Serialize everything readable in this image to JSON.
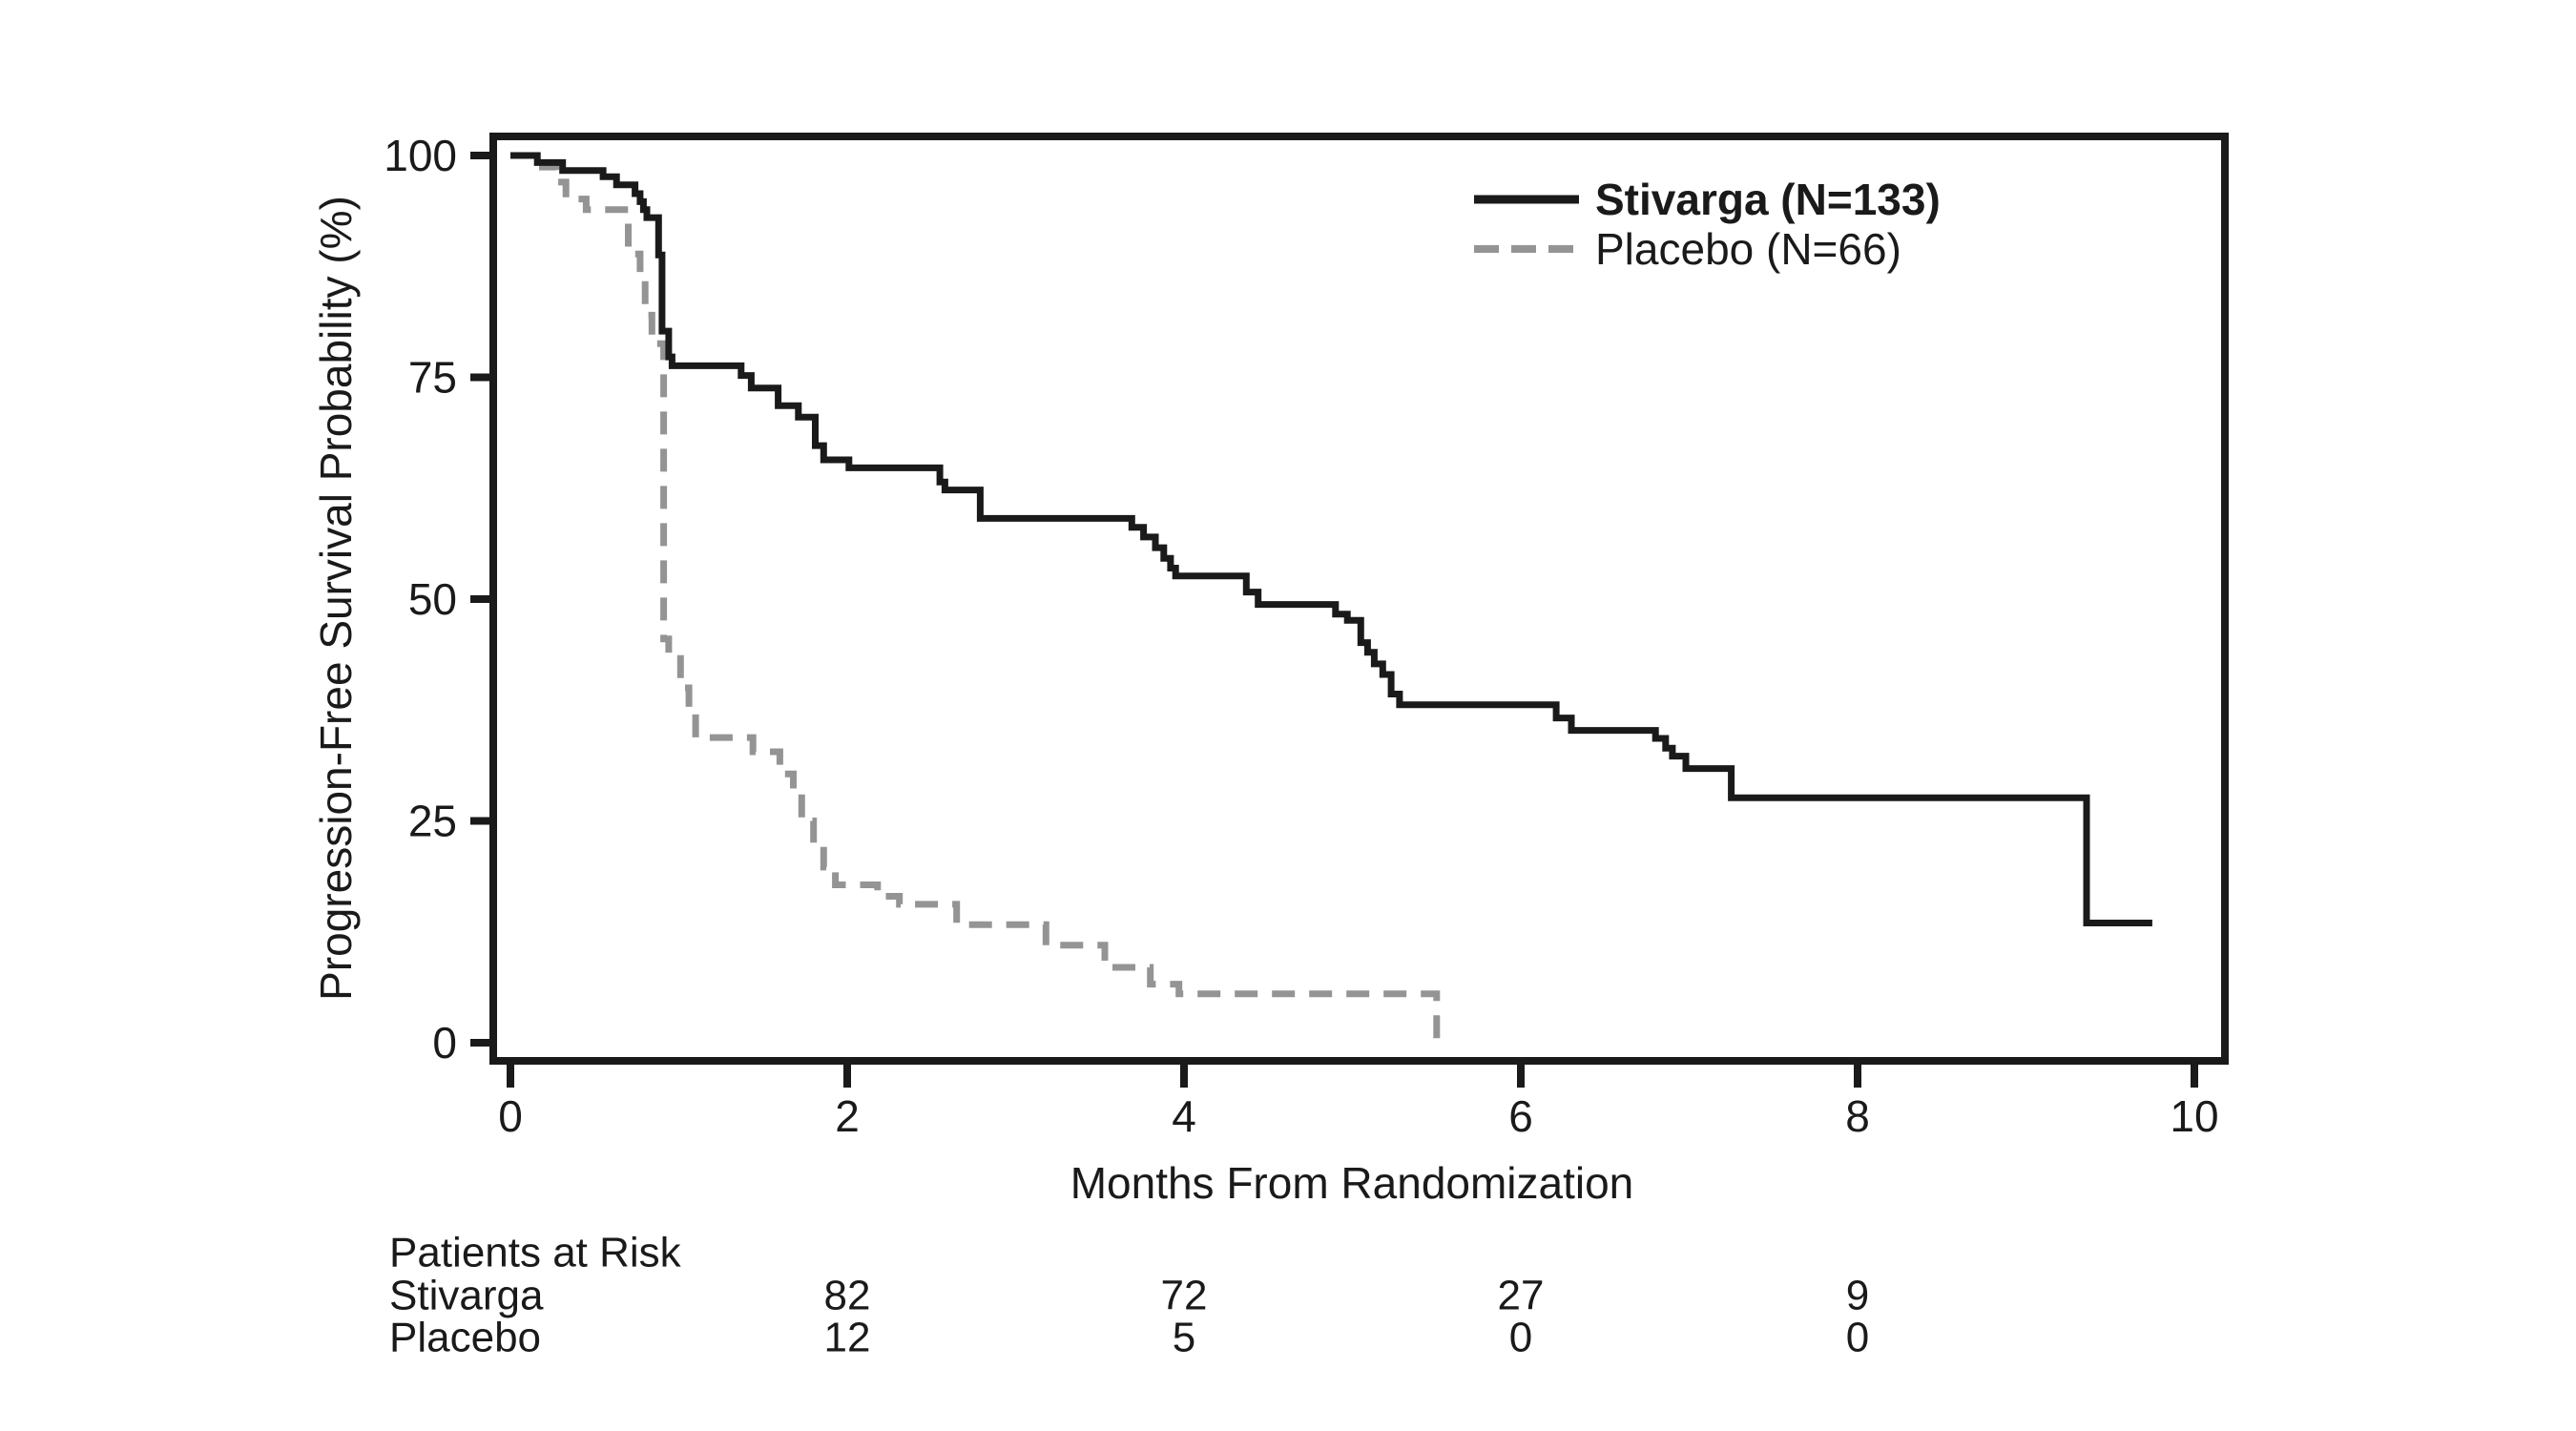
{
  "figure": {
    "background": "#ffffff",
    "text_color": "#1a1a1a"
  },
  "axes": {
    "y": {
      "title": "Progression-Free Survival Probability (%)",
      "ticks": [
        0,
        25,
        50,
        75,
        100
      ],
      "range": [
        0,
        100
      ]
    },
    "x": {
      "title": "Months From Randomization",
      "ticks": [
        0,
        2,
        4,
        6,
        8,
        10
      ],
      "range": [
        0,
        10
      ]
    }
  },
  "legend": {
    "entries": [
      {
        "label": "Stivarga (N=133)",
        "line": "solid",
        "color": "#1a1a1a",
        "bold": true
      },
      {
        "label": "Placebo (N=66)",
        "line": "dashed",
        "color": "#949494",
        "bold": false
      }
    ]
  },
  "risk_table": {
    "header": "Patients at Risk",
    "months": [
      2,
      4,
      6,
      8
    ],
    "rows": [
      {
        "label": "Stivarga",
        "counts": [
          "82",
          "72",
          "27",
          "9"
        ]
      },
      {
        "label": "Placebo",
        "counts": [
          "12",
          "5",
          "0",
          "0"
        ]
      }
    ]
  },
  "chart_data": {
    "type": "line",
    "subtype": "kaplan-meier-step",
    "title": "",
    "xlabel": "Months From Randomization",
    "ylabel": "Progression-Free Survival Probability (%)",
    "xlim": [
      0,
      10
    ],
    "ylim": [
      0,
      100
    ],
    "grid": false,
    "legend_position": "top-right",
    "series": [
      {
        "name": "Stivarga (N=133)",
        "n": 133,
        "style": "solid",
        "color": "#1a1a1a",
        "end_month": 9.75,
        "steps": [
          [
            0,
            100
          ],
          [
            0.16,
            99.2
          ],
          [
            0.31,
            98.3
          ],
          [
            0.55,
            97.6
          ],
          [
            0.63,
            96.7
          ],
          [
            0.74,
            95.7
          ],
          [
            0.77,
            94.8
          ],
          [
            0.79,
            93.9
          ],
          [
            0.81,
            93.0
          ],
          [
            0.88,
            88.8
          ],
          [
            0.9,
            80.2
          ],
          [
            0.94,
            77.3
          ],
          [
            0.96,
            76.3
          ],
          [
            1.37,
            75.2
          ],
          [
            1.43,
            73.8
          ],
          [
            1.59,
            71.8
          ],
          [
            1.71,
            70.5
          ],
          [
            1.81,
            67.3
          ],
          [
            1.86,
            65.7
          ],
          [
            2.01,
            64.8
          ],
          [
            2.55,
            63.2
          ],
          [
            2.58,
            62.3
          ],
          [
            2.79,
            59.1
          ],
          [
            3.69,
            58.1
          ],
          [
            3.76,
            57.0
          ],
          [
            3.83,
            55.8
          ],
          [
            3.88,
            54.6
          ],
          [
            3.92,
            53.5
          ],
          [
            3.95,
            52.6
          ],
          [
            4.37,
            50.8
          ],
          [
            4.44,
            49.4
          ],
          [
            4.9,
            48.3
          ],
          [
            4.97,
            47.6
          ],
          [
            5.05,
            45.1
          ],
          [
            5.09,
            44.0
          ],
          [
            5.13,
            42.7
          ],
          [
            5.18,
            41.5
          ],
          [
            5.23,
            39.3
          ],
          [
            5.28,
            38.1
          ],
          [
            6.21,
            36.6
          ],
          [
            6.3,
            35.2
          ],
          [
            6.8,
            34.3
          ],
          [
            6.86,
            33.2
          ],
          [
            6.9,
            32.3
          ],
          [
            6.98,
            30.9
          ],
          [
            7.25,
            27.6
          ],
          [
            9.36,
            13.5
          ]
        ]
      },
      {
        "name": "Placebo (N=66)",
        "n": 66,
        "style": "dashed",
        "color": "#949494",
        "end_month": 5.5,
        "steps": [
          [
            0,
            100
          ],
          [
            0.19,
            98.7
          ],
          [
            0.27,
            97.0
          ],
          [
            0.33,
            95.1
          ],
          [
            0.45,
            93.9
          ],
          [
            0.7,
            88.9
          ],
          [
            0.77,
            86.4
          ],
          [
            0.8,
            82.0
          ],
          [
            0.84,
            78.8
          ],
          [
            0.91,
            45.5
          ],
          [
            0.94,
            43.9
          ],
          [
            1.01,
            40.0
          ],
          [
            1.06,
            37.0
          ],
          [
            1.1,
            34.4
          ],
          [
            1.44,
            32.8
          ],
          [
            1.6,
            30.3
          ],
          [
            1.68,
            28.0
          ],
          [
            1.73,
            25.0
          ],
          [
            1.8,
            22.5
          ],
          [
            1.86,
            19.8
          ],
          [
            1.93,
            17.8
          ],
          [
            2.18,
            16.5
          ],
          [
            2.31,
            15.6
          ],
          [
            2.65,
            13.3
          ],
          [
            3.18,
            11.0
          ],
          [
            3.53,
            8.5
          ],
          [
            3.8,
            6.6
          ],
          [
            3.97,
            5.5
          ],
          [
            5.5,
            0.0
          ]
        ]
      }
    ]
  }
}
